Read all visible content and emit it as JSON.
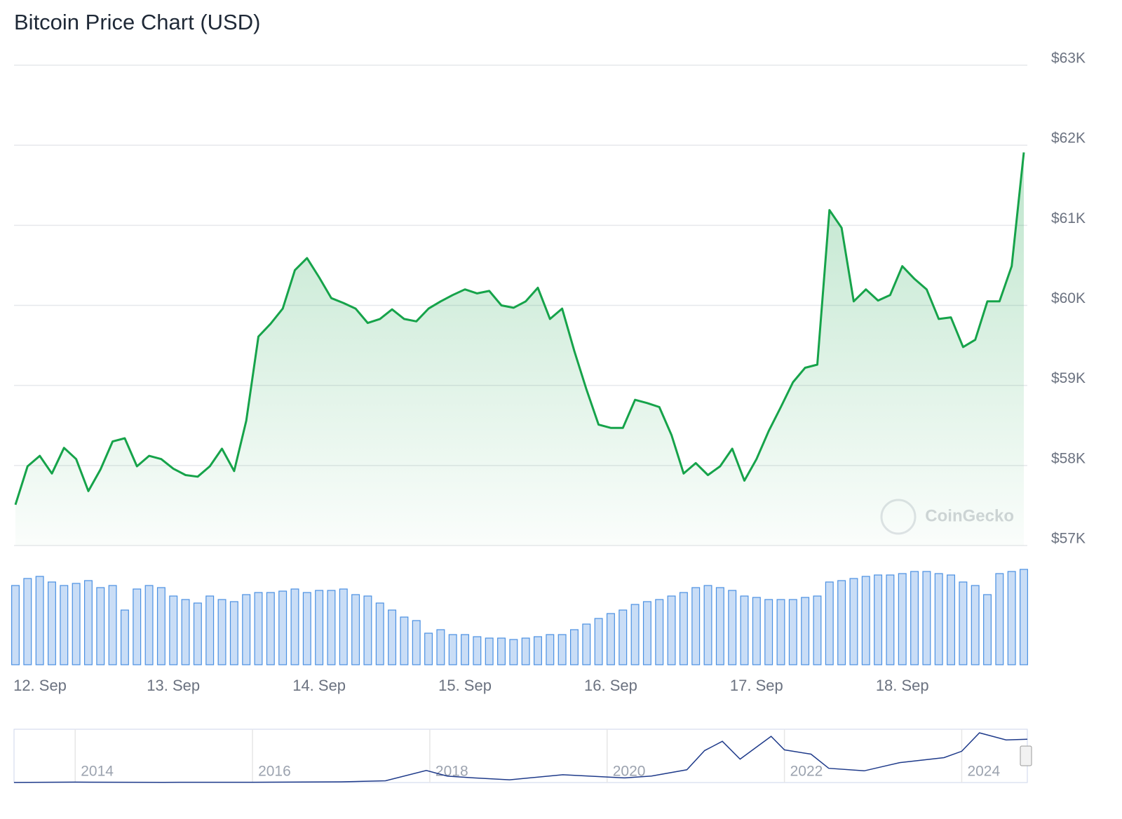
{
  "chart_data": [
    {
      "type": "area",
      "title": "Bitcoin Price Chart (USD)",
      "watermark": "CoinGecko",
      "categories": [
        null,
        "12. Sep",
        null,
        null,
        null,
        null,
        null,
        null,
        null,
        null,
        null,
        null,
        null,
        "13. Sep",
        null,
        null,
        null,
        null,
        null,
        null,
        null,
        null,
        null,
        null,
        null,
        "14. Sep",
        null,
        null,
        null,
        null,
        null,
        null,
        null,
        null,
        null,
        null,
        null,
        "15. Sep",
        null,
        null,
        null,
        null,
        null,
        null,
        null,
        null,
        null,
        null,
        null,
        "16. Sep",
        null,
        null,
        null,
        null,
        null,
        null,
        null,
        null,
        null,
        null,
        null,
        "17. Sep",
        null,
        null,
        null,
        null,
        null,
        null,
        null,
        null,
        null,
        null,
        null,
        "18. Sep",
        null,
        null,
        null,
        null,
        null,
        null,
        null,
        null,
        null,
        null
      ],
      "values": [
        57510,
        57990,
        58120,
        57900,
        58220,
        58080,
        57680,
        57950,
        58300,
        58340,
        57990,
        58120,
        58080,
        57960,
        57880,
        57860,
        57990,
        58210,
        57930,
        58560,
        59610,
        59770,
        59960,
        60440,
        60590,
        60350,
        60090,
        60030,
        59960,
        59780,
        59830,
        59950,
        59830,
        59800,
        59960,
        60050,
        60130,
        60200,
        60150,
        60180,
        60000,
        59970,
        60050,
        60220,
        59830,
        59960,
        59430,
        58950,
        58510,
        58470,
        58470,
        58820,
        58780,
        58730,
        58380,
        57900,
        58030,
        57880,
        57990,
        58210,
        57810,
        58080,
        58430,
        58730,
        59040,
        59220,
        59260,
        61190,
        60970,
        60050,
        60200,
        60060,
        60130,
        60490,
        60330,
        60200,
        59830,
        59850,
        59480,
        59570,
        60050,
        60050,
        60490,
        61910
      ],
      "color": "#16a34a",
      "ylim": [
        57000,
        63000
      ],
      "yticks": [
        {
          "value": 57000,
          "label": "$57K"
        },
        {
          "value": 58000,
          "label": "$58K"
        },
        {
          "value": 59000,
          "label": "$59K"
        },
        {
          "value": 60000,
          "label": "$60K"
        },
        {
          "value": 61000,
          "label": "$61K"
        },
        {
          "value": 62000,
          "label": "$62K"
        },
        {
          "value": 63000,
          "label": "$63K"
        }
      ],
      "grid": true,
      "volume": [
        113,
        123,
        126,
        118,
        113,
        116,
        120,
        110,
        113,
        78,
        108,
        113,
        110,
        98,
        93,
        88,
        98,
        93,
        90,
        100,
        103,
        103,
        105,
        108,
        103,
        106,
        106,
        108,
        100,
        98,
        88,
        78,
        68,
        63,
        45,
        50,
        43,
        43,
        40,
        38,
        38,
        36,
        38,
        40,
        43,
        43,
        50,
        58,
        66,
        73,
        78,
        86,
        90,
        93,
        98,
        103,
        110,
        113,
        110,
        106,
        98,
        96,
        93,
        93,
        93,
        96,
        98,
        118,
        120,
        123,
        126,
        128,
        128,
        130,
        133,
        133,
        130,
        128,
        118,
        113,
        100,
        130,
        133,
        136
      ],
      "volume_color": "#4a90e2",
      "y2lim": [
        0,
        140
      ]
    },
    {
      "type": "line",
      "x": [
        2013.31,
        2014,
        2015,
        2016,
        2017,
        2017.5,
        2017.96,
        2018.2,
        2018.5,
        2018.9,
        2019.5,
        2020.2,
        2020.5,
        2020.9,
        2021.1,
        2021.3,
        2021.5,
        2021.85,
        2022.0,
        2022.3,
        2022.5,
        2022.9,
        2023.3,
        2023.8,
        2024.0,
        2024.2,
        2024.5,
        2024.74
      ],
      "values": [
        100,
        600,
        300,
        430,
        1000,
        2500,
        17000,
        9000,
        6500,
        3800,
        11000,
        6500,
        9200,
        18000,
        45000,
        58000,
        33000,
        65000,
        46000,
        40000,
        20000,
        16500,
        28000,
        35000,
        44000,
        70000,
        60000,
        61000
      ],
      "xlim": [
        2013.31,
        2024.74
      ],
      "xticks": [
        2014,
        2016,
        2018,
        2020,
        2022,
        2024
      ],
      "ylim": [
        0,
        75000
      ],
      "color": "#1e3a8a"
    }
  ]
}
